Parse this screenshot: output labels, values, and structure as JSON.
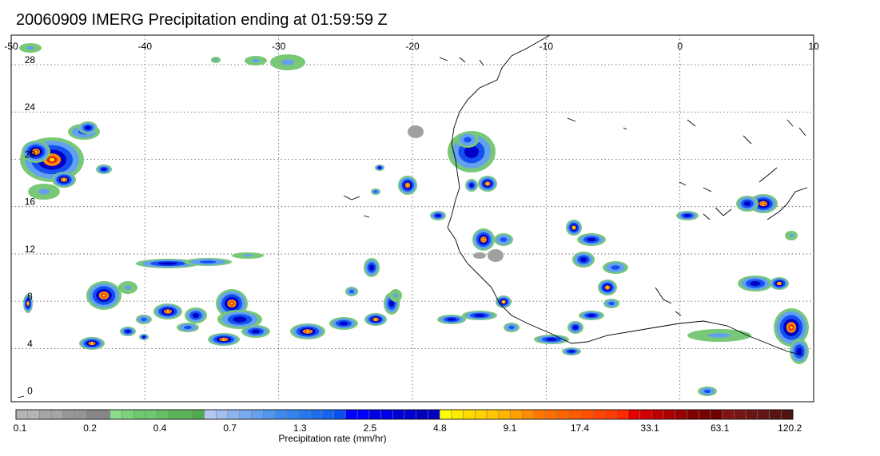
{
  "title": "20060909 IMERG Precipitation ending at 01:59:59 Z",
  "map": {
    "lon_range": [
      -50,
      10
    ],
    "lat_range": [
      -0.5,
      30.5
    ],
    "lon_ticks": [
      "-50",
      "-40",
      "-30",
      "-20",
      "-10",
      "0",
      "10"
    ],
    "lat_ticks": [
      "0",
      "4",
      "8",
      "12",
      "16",
      "20",
      "24",
      "28"
    ],
    "grid": "dotted"
  },
  "colorbar": {
    "label": "Precipitation rate (mm/hr)",
    "tick_labels": [
      "0.1",
      "0.2",
      "0.4",
      "0.7",
      "1.3",
      "2.5",
      "4.8",
      "9.1",
      "17.4",
      "33.1",
      "63.1",
      "120.2"
    ],
    "colors": [
      "#b4b4b4",
      "#b4b4b4",
      "#a5a5a5",
      "#a5a5a5",
      "#969696",
      "#969696",
      "#878787",
      "#878787",
      "#8cdc8c",
      "#7dd27d",
      "#6ec86e",
      "#6ec86e",
      "#64be64",
      "#5ab45a",
      "#5ab45a",
      "#50aa50",
      "#b4c8f0",
      "#a0bef0",
      "#8cb4f0",
      "#78aaf0",
      "#64a0f0",
      "#5096f0",
      "#3c8cf0",
      "#3282f0",
      "#2878f0",
      "#1e6ef0",
      "#1464f0",
      "#0a50f0",
      "#0000ff",
      "#0000ff",
      "#0000e6",
      "#0000e6",
      "#0000d2",
      "#0000d2",
      "#0000be",
      "#0000be",
      "#ffff00",
      "#ffeb00",
      "#ffdc00",
      "#ffd200",
      "#ffc800",
      "#ffb400",
      "#ffa000",
      "#ff8c00",
      "#ff7800",
      "#ff6e00",
      "#ff6400",
      "#ff5a00",
      "#ff5000",
      "#ff4600",
      "#ff3c00",
      "#ff2800",
      "#e60000",
      "#d20000",
      "#be0000",
      "#aa0000",
      "#960000",
      "#820000",
      "#780000",
      "#6e0000",
      "#821414",
      "#781414",
      "#6e1414",
      "#641414",
      "#5a1414",
      "#501414"
    ]
  },
  "precip_legend_colors": {
    "gray": "#a0a0a0",
    "green": "#78c878",
    "light_blue": "#64a0f0",
    "blue": "#1450f0",
    "dark_blue": "#0000c8",
    "yellow": "#ffe600",
    "orange": "#ff8c00",
    "red": "#e61e00"
  }
}
